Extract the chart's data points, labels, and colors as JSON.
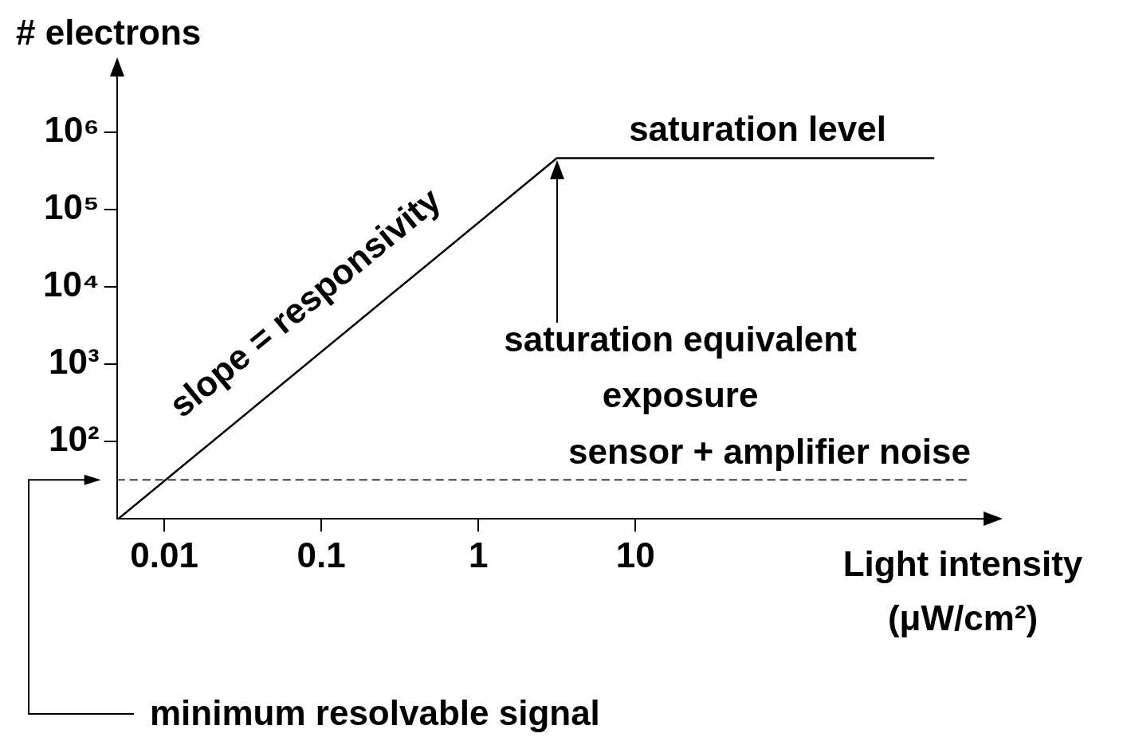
{
  "chart_data": {
    "type": "line",
    "xlabel": "Light intensity (μW/cm²)",
    "ylabel": "# electrons",
    "log": "xy",
    "grid": false,
    "legend": false,
    "marker": "none",
    "line_style": "solid",
    "xlim": [
      0.005,
      1500
    ],
    "ylim": [
      10,
      5000000
    ],
    "xticks": [
      0.01,
      0.1,
      1,
      10
    ],
    "yticks": [
      {
        "value": 100,
        "label": "10²"
      },
      {
        "value": 1000,
        "label": "10³"
      },
      {
        "value": 10000,
        "label": "10⁴"
      },
      {
        "value": 100000,
        "label": "10⁵"
      },
      {
        "value": 1000000,
        "label": "10⁶"
      }
    ],
    "series": [
      {
        "x": [
          0.0051,
          3.16,
          800
        ],
        "values": [
          10,
          460000,
          460000
        ],
        "color": "#000000"
      }
    ],
    "ref_lines": [
      {
        "axis": "y",
        "value": 32,
        "label": "sensor + amplifier noise",
        "line_style": "dashed",
        "color": "#000000"
      }
    ],
    "annotations": [
      "slope = responsivity",
      {
        "text": "saturation level",
        "x": 60,
        "y": 460000
      },
      "saturation equivalent exposure",
      "minimum resolvable signal"
    ]
  }
}
